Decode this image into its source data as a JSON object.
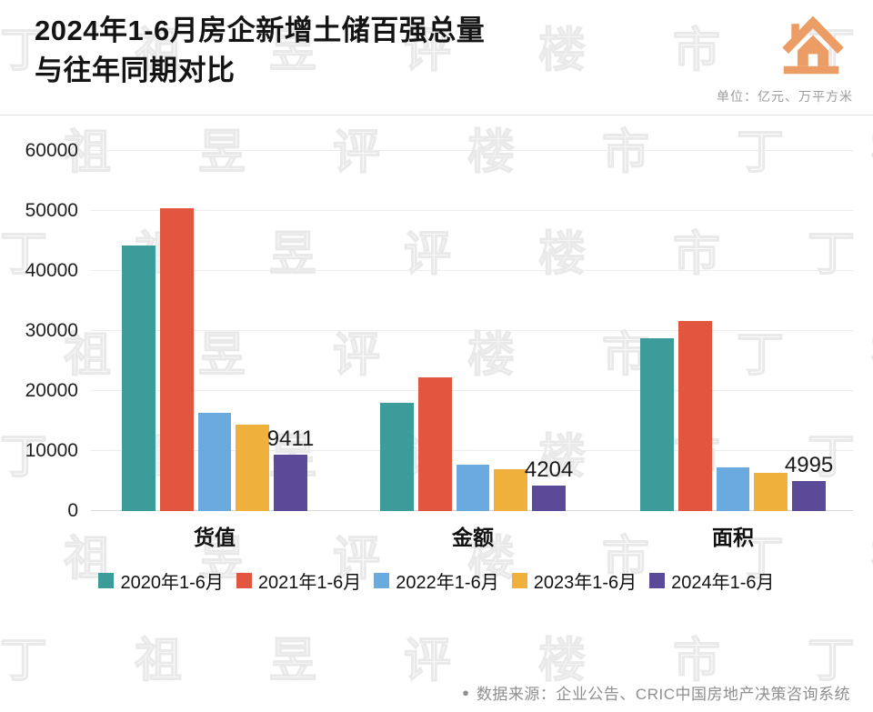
{
  "header": {
    "title_lines": [
      "2024年1-6月房企新增土储百强总量",
      "与往年同期对比"
    ],
    "unit_label": "单位：亿元、万平方米",
    "logo_color": "#EC9D66"
  },
  "watermark": {
    "text": "丁祖昱评楼市"
  },
  "chart_data": {
    "type": "bar",
    "title": "2024年1-6月房企新增土储百强总量与往年同期对比",
    "categories": [
      "货值",
      "金额",
      "面积"
    ],
    "series": [
      {
        "name": "2020年1-6月",
        "color": "#3B9C99",
        "values": [
          44200,
          18000,
          28800
        ]
      },
      {
        "name": "2021年1-6月",
        "color": "#E2553F",
        "values": [
          50400,
          22300,
          31700
        ]
      },
      {
        "name": "2022年1-6月",
        "color": "#6AAADE",
        "values": [
          16300,
          7700,
          7200
        ]
      },
      {
        "name": "2023年1-6月",
        "color": "#F0B03C",
        "values": [
          14400,
          7000,
          6300
        ]
      },
      {
        "name": "2024年1-6月",
        "color": "#5B4A97",
        "values": [
          9411,
          4204,
          4995
        ]
      }
    ],
    "ylim": [
      0,
      60000
    ],
    "ytick_step": 10000,
    "yticks": [
      "0",
      "10000",
      "20000",
      "30000",
      "40000",
      "50000",
      "60000"
    ],
    "grid": true,
    "legend_position": "bottom",
    "value_label_series": "2024年1-6月",
    "value_labels": {
      "货值": "9411",
      "金额": "4204",
      "面积": "4995"
    }
  },
  "footer": {
    "bullet": "●",
    "source_text": "数据来源：企业公告、CRIC中国房地产决策咨询系统"
  }
}
